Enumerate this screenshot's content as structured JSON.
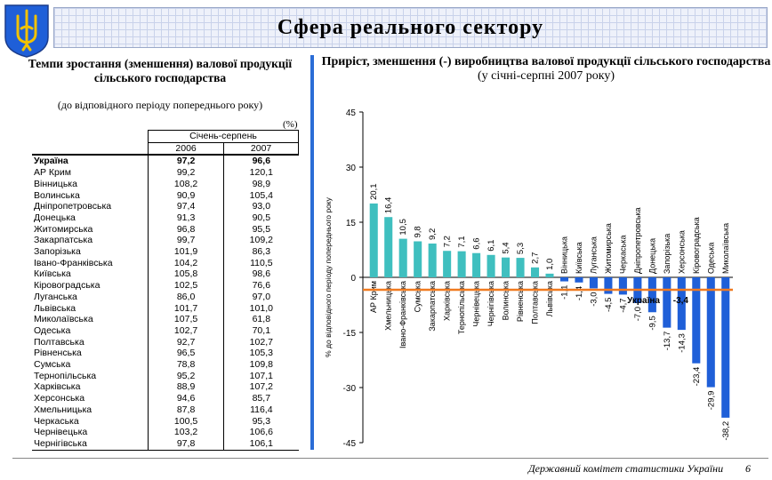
{
  "header": {
    "title": "Сфера реального сектору"
  },
  "left": {
    "title": "Темпи зростання (зменшення) валової продукції сільського господарства",
    "note": "(до відповідного періоду попереднього року)",
    "units": "(%)",
    "period_label": "Січень-серпень",
    "year1": "2006",
    "year2": "2007",
    "rows": [
      {
        "name": "Україна",
        "y2006": "97,2",
        "y2007": "96,6"
      },
      {
        "name": "АР Крим",
        "y2006": "99,2",
        "y2007": "120,1"
      },
      {
        "name": "Вінницька",
        "y2006": "108,2",
        "y2007": "98,9"
      },
      {
        "name": "Волинська",
        "y2006": "90,9",
        "y2007": "105,4"
      },
      {
        "name": "Дніпропетровська",
        "y2006": "97,4",
        "y2007": "93,0"
      },
      {
        "name": "Донецька",
        "y2006": "91,3",
        "y2007": "90,5"
      },
      {
        "name": "Житомирська",
        "y2006": "96,8",
        "y2007": "95,5"
      },
      {
        "name": "Закарпатська",
        "y2006": "99,7",
        "y2007": "109,2"
      },
      {
        "name": "Запорізька",
        "y2006": "101,9",
        "y2007": "86,3"
      },
      {
        "name": "Івано-Франківська",
        "y2006": "104,2",
        "y2007": "110,5"
      },
      {
        "name": "Київська",
        "y2006": "105,8",
        "y2007": "98,6"
      },
      {
        "name": "Кіровоградська",
        "y2006": "102,5",
        "y2007": "76,6"
      },
      {
        "name": "Луганська",
        "y2006": "86,0",
        "y2007": "97,0"
      },
      {
        "name": "Львівська",
        "y2006": "101,7",
        "y2007": "101,0"
      },
      {
        "name": "Миколаївська",
        "y2006": "107,5",
        "y2007": "61,8"
      },
      {
        "name": "Одеська",
        "y2006": "102,7",
        "y2007": "70,1"
      },
      {
        "name": "Полтавська",
        "y2006": "92,7",
        "y2007": "102,7"
      },
      {
        "name": "Рівненська",
        "y2006": "96,5",
        "y2007": "105,3"
      },
      {
        "name": "Сумська",
        "y2006": "78,8",
        "y2007": "109,8"
      },
      {
        "name": "Тернопільська",
        "y2006": "95,2",
        "y2007": "107,1"
      },
      {
        "name": "Харківська",
        "y2006": "88,9",
        "y2007": "107,2"
      },
      {
        "name": "Херсонська",
        "y2006": "94,6",
        "y2007": "85,7"
      },
      {
        "name": "Хмельницька",
        "y2006": "87,8",
        "y2007": "116,4"
      },
      {
        "name": "Черкаська",
        "y2006": "100,5",
        "y2007": "95,3"
      },
      {
        "name": "Чернівецька",
        "y2006": "103,2",
        "y2007": "106,6"
      },
      {
        "name": "Чернігівська",
        "y2006": "97,8",
        "y2007": "106,1"
      }
    ]
  },
  "chart_title": {
    "line1": "Приріст, зменшення (-) виробництва валової продукції сільського господарства",
    "line2": "(у січні-серпні 2007 року)"
  },
  "footer": {
    "source": "Державний комітет статистики України",
    "page": "6"
  },
  "colors": {
    "positive": "#3fbfbf",
    "negative": "#1f5fd8",
    "reference": "#f07a20",
    "accent": "#2b6dd6"
  },
  "chart_data": {
    "type": "bar",
    "ylabel": "% до відповідного періоду попереднього року",
    "ylim": [
      -45,
      45
    ],
    "yticks": [
      45,
      30,
      15,
      0,
      -15,
      -30,
      -45
    ],
    "categories": [
      "АР Крим",
      "Хмельницька",
      "Івано-Франківська",
      "Сумська",
      "Закарпатська",
      "Харківська",
      "Тернопільська",
      "Чернівецька",
      "Чернігівська",
      "Волинська",
      "Рівненська",
      "Полтавська",
      "Львівська",
      "Вінницька",
      "Київська",
      "Луганська",
      "Житомирська",
      "Черкаська",
      "Дніпропетровська",
      "Донецька",
      "Запорізька",
      "Херсонська",
      "Кіровоградська",
      "Одеська",
      "Миколаївська"
    ],
    "values": [
      20.1,
      16.4,
      10.5,
      9.8,
      9.2,
      7.2,
      7.1,
      6.6,
      6.1,
      5.4,
      5.3,
      2.7,
      1.0,
      -1.1,
      -1.4,
      -3.0,
      -4.5,
      -4.7,
      -7.0,
      -9.5,
      -13.7,
      -14.3,
      -23.4,
      -29.9,
      -38.2
    ],
    "value_labels": [
      "20,1",
      "16,4",
      "10,5",
      "9,8",
      "9,2",
      "7,2",
      "7,1",
      "6,6",
      "6,1",
      "5,4",
      "5,3",
      "2,7",
      "1,0",
      "-1,1",
      "-1,4",
      "-3,0",
      "-4,5",
      "-4,7",
      "-7,0",
      "-9,5",
      "-13,7",
      "-14,3",
      "-23,4",
      "-29,9",
      "-38,2"
    ],
    "reference_line": {
      "label": "Україна",
      "value": -3.4,
      "value_label": "-3,4"
    }
  }
}
